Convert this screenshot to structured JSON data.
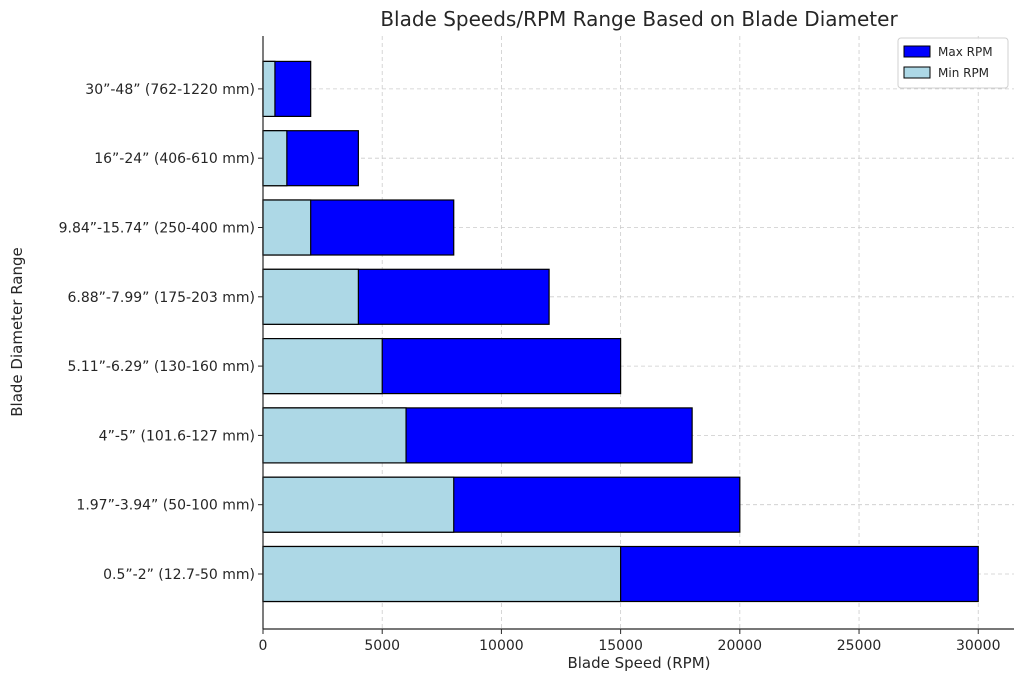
{
  "chart_data": {
    "type": "bar",
    "orientation": "horizontal",
    "stacked": "overlay",
    "title": "Blade Speeds/RPM Range Based on Blade Diameter",
    "xlabel": "Blade Speed (RPM)",
    "ylabel": "Blade Diameter Range",
    "xlim": [
      0,
      31500
    ],
    "xticks": [
      0,
      5000,
      10000,
      15000,
      20000,
      25000,
      30000
    ],
    "grid": true,
    "legend_position": "top-right",
    "categories": [
      "0.5”-2” (12.7-50 mm)",
      "1.97”-3.94” (50-100 mm)",
      "4”-5” (101.6-127 mm)",
      "5.11”-6.29” (130-160 mm)",
      "6.88”-7.99” (175-203 mm)",
      "9.84”-15.74” (250-400 mm)",
      "16”-24” (406-610 mm)",
      "30”-48” (762-1220 mm)"
    ],
    "series": [
      {
        "name": "Max RPM",
        "color": "#0000ff",
        "values": [
          30000,
          20000,
          18000,
          15000,
          12000,
          8000,
          4000,
          2000
        ]
      },
      {
        "name": "Min RPM",
        "color": "#add8e6",
        "values": [
          15000,
          8000,
          6000,
          5000,
          4000,
          2000,
          1000,
          500
        ]
      }
    ]
  }
}
